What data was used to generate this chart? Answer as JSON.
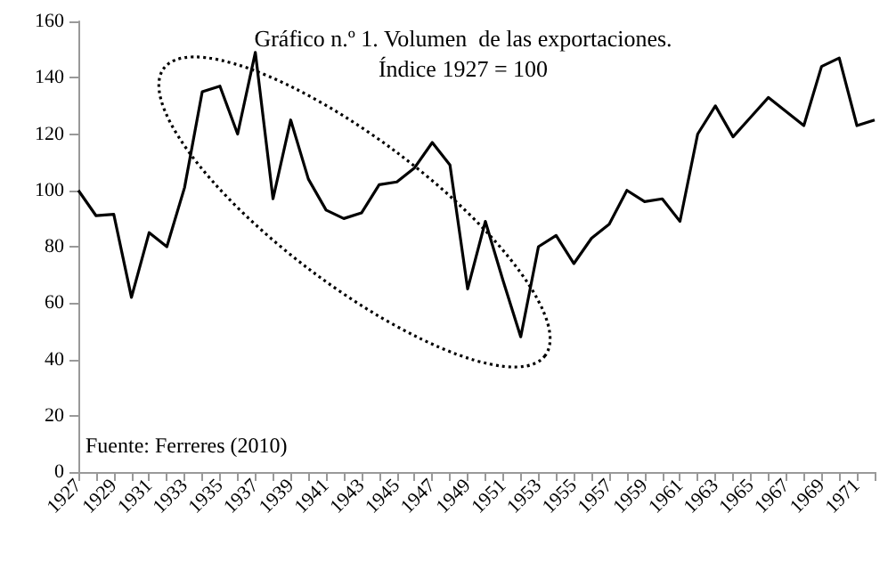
{
  "chart_data": {
    "type": "line",
    "title": "Gráfico n.º 1. Volumen  de las exportaciones.\nÍndice 1927 = 100",
    "categories": [
      "1927",
      null,
      "1929",
      null,
      "1931",
      null,
      "1933",
      null,
      "1935",
      null,
      "1937",
      null,
      "1939",
      null,
      "1941",
      null,
      "1943",
      null,
      "1945",
      null,
      "1947",
      null,
      "1949",
      null,
      "1951",
      null,
      "1953",
      null,
      "1955",
      null,
      "1957",
      null,
      "1959",
      null,
      "1961",
      null,
      "1963",
      null,
      "1965",
      null,
      "1967",
      null,
      "1969",
      null,
      "1971",
      null
    ],
    "series": [
      {
        "color": "#000000",
        "values": [
          100,
          91,
          91.5,
          62,
          85,
          80,
          101,
          135,
          137,
          120,
          149,
          97,
          125,
          104,
          93,
          90,
          92,
          102,
          103,
          108,
          117,
          109,
          65,
          89,
          68,
          48,
          80,
          84,
          74,
          83,
          88,
          100,
          96,
          97,
          89,
          120,
          130,
          119,
          126,
          133,
          128,
          123,
          144,
          147,
          123,
          125
        ]
      }
    ],
    "ylim": [
      0,
      160
    ],
    "yticks": [
      0,
      20,
      40,
      60,
      80,
      100,
      120,
      140,
      160
    ],
    "grid": false,
    "marker": "none",
    "line_style": "solid",
    "annotations": [
      "Fuente: Ferreres (2010)"
    ]
  }
}
